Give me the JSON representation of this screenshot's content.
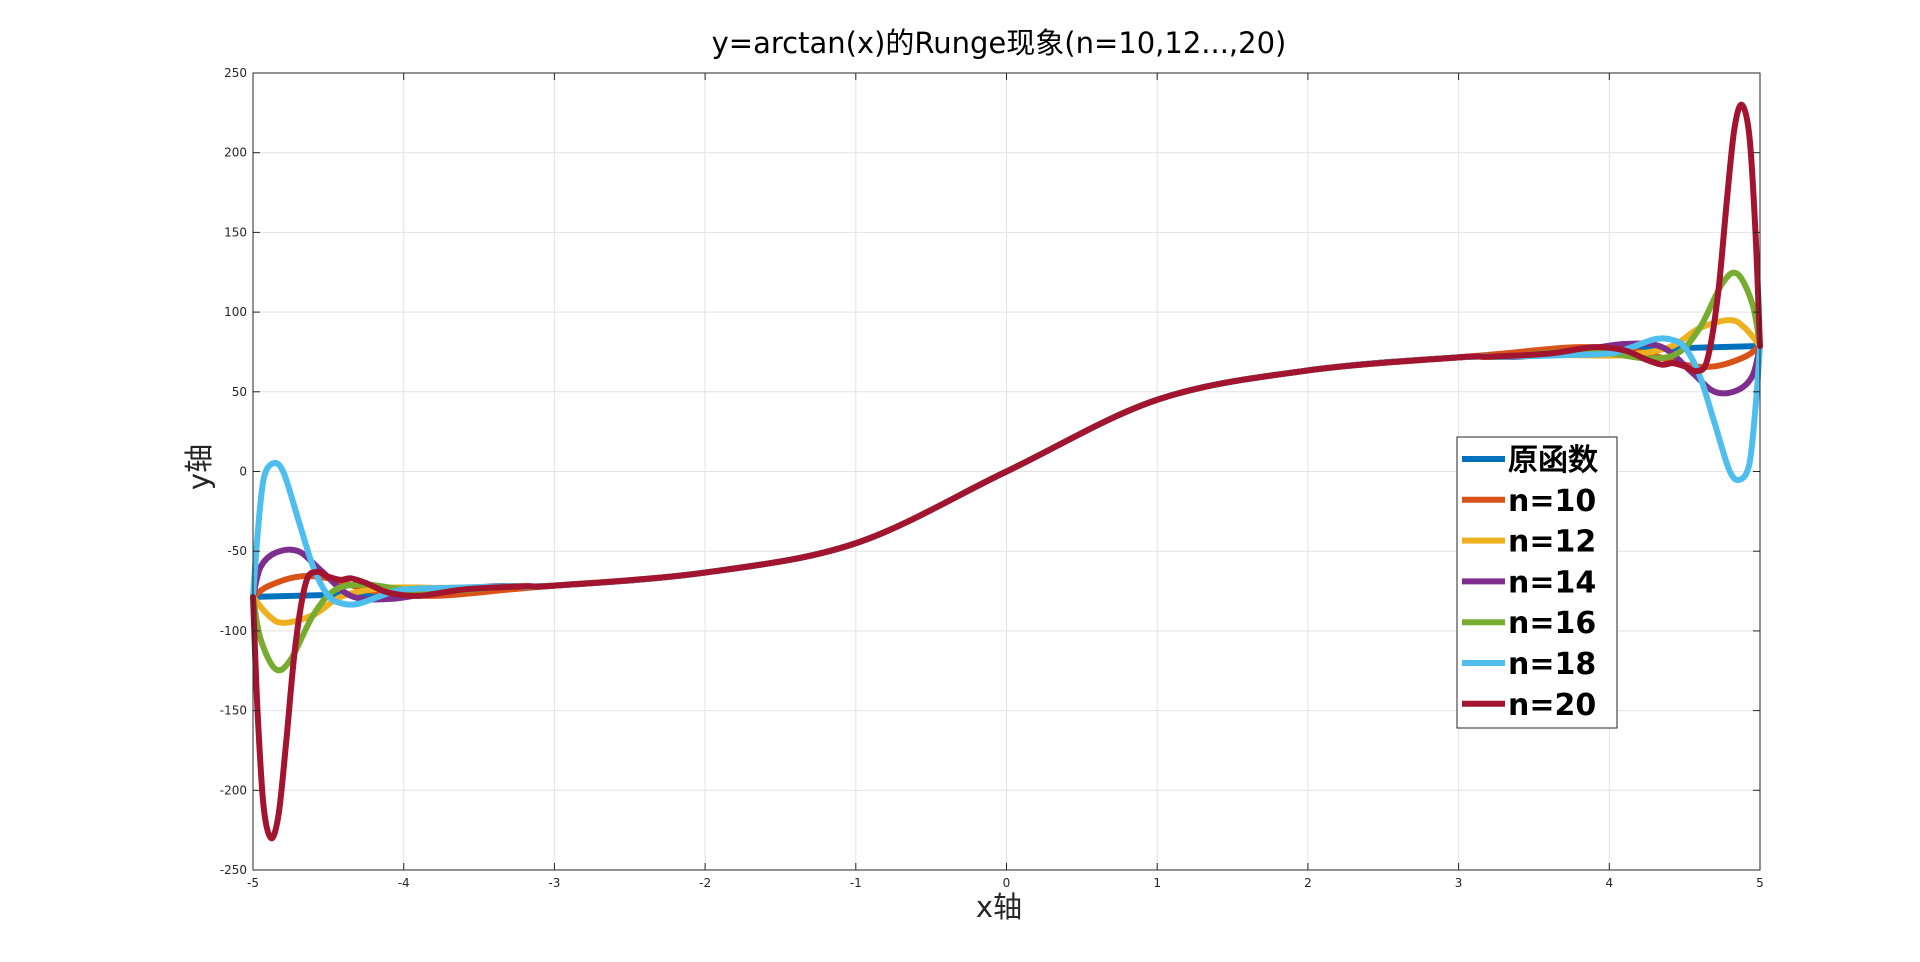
{
  "chart_data": {
    "type": "line",
    "title": "y=arctan(x)的Runge现象(n=10,12...,20)",
    "xlabel": "x轴",
    "ylabel": "y轴",
    "xlim": [
      -5,
      5
    ],
    "ylim": [
      -250,
      250
    ],
    "xticks": [
      "-5",
      "-4",
      "-3",
      "-2",
      "-1",
      "0",
      "1",
      "2",
      "3",
      "4",
      "5"
    ],
    "yticks": [
      "-250",
      "-200",
      "-150",
      "-100",
      "-50",
      "0",
      "50",
      "100",
      "150",
      "200",
      "250"
    ],
    "grid": true,
    "legend_position": "right",
    "series": [
      {
        "name": "原函数",
        "color": "#0072BD",
        "x": [
          -5,
          -4,
          -3,
          -2,
          -1,
          0,
          1,
          2,
          3,
          4,
          5
        ],
        "y": [
          -78.7,
          -76.0,
          -71.6,
          -63.4,
          -45.0,
          0,
          45.0,
          63.4,
          71.6,
          76.0,
          78.7
        ]
      },
      {
        "name": "n=10",
        "color": "#D95319",
        "x": [
          -5,
          -4.9,
          -4.7,
          -4.5,
          -4.2,
          -3.8,
          -3.3,
          -3,
          -2,
          -1,
          0,
          1,
          2,
          3,
          3.3,
          3.8,
          4.2,
          4.5,
          4.7,
          4.9,
          5
        ],
        "y": [
          -78.7,
          -72,
          -66,
          -67,
          -75,
          -78,
          -74,
          -71.6,
          -63.4,
          -45.0,
          0,
          45.0,
          63.4,
          71.6,
          74,
          78,
          75,
          67,
          66,
          72,
          78.7
        ]
      },
      {
        "name": "n=12",
        "color": "#EDB120",
        "x": [
          -5,
          -4.9,
          -4.8,
          -4.6,
          -4.4,
          -4.1,
          -3.7,
          -3.2,
          -3,
          -2,
          -1,
          0,
          1,
          2,
          3,
          3.2,
          3.7,
          4.1,
          4.4,
          4.6,
          4.8,
          4.9,
          5
        ],
        "y": [
          -78.7,
          -90,
          -95,
          -90,
          -78,
          -73,
          -73,
          -72,
          -71.6,
          -63.4,
          -45.0,
          0,
          45.0,
          63.4,
          71.6,
          72,
          73,
          73,
          78,
          90,
          95,
          90,
          78.7
        ]
      },
      {
        "name": "n=14",
        "color": "#7E2F8E",
        "x": [
          -5,
          -4.95,
          -4.85,
          -4.7,
          -4.55,
          -4.35,
          -4.1,
          -3.8,
          -3.4,
          -3,
          -2,
          -1,
          0,
          1,
          2,
          3,
          3.4,
          3.8,
          4.1,
          4.35,
          4.55,
          4.7,
          4.85,
          4.95,
          5
        ],
        "y": [
          -78.7,
          -60,
          -51,
          -50,
          -62,
          -78,
          -80,
          -76,
          -72,
          -71.6,
          -63.4,
          -45.0,
          0,
          45.0,
          63.4,
          71.6,
          72,
          76,
          80,
          78,
          62,
          50,
          51,
          60,
          78.7
        ]
      },
      {
        "name": "n=16",
        "color": "#77AC30",
        "x": [
          -5,
          -4.95,
          -4.85,
          -4.75,
          -4.6,
          -4.45,
          -4.25,
          -4.0,
          -3.7,
          -3.3,
          -3,
          -2,
          -1,
          0,
          1,
          2,
          3,
          3.3,
          3.7,
          4.0,
          4.25,
          4.45,
          4.6,
          4.75,
          4.85,
          4.95,
          5
        ],
        "y": [
          -78.7,
          -105,
          -124,
          -118,
          -90,
          -74,
          -71,
          -74,
          -75,
          -72,
          -71.6,
          -63.4,
          -45.0,
          0,
          45.0,
          63.4,
          71.6,
          72,
          75,
          74,
          71,
          74,
          90,
          118,
          124,
          105,
          78.7
        ]
      },
      {
        "name": "n=18",
        "color": "#4DBEEE",
        "x": [
          -5,
          -4.97,
          -4.93,
          -4.87,
          -4.8,
          -4.7,
          -4.6,
          -4.5,
          -4.4,
          -4.3,
          -4.15,
          -4.0,
          -3.7,
          -3.3,
          -3,
          -2,
          -1,
          0,
          1,
          2,
          3,
          3.3,
          3.7,
          4.0,
          4.15,
          4.3,
          4.4,
          4.5,
          4.6,
          4.7,
          4.8,
          4.87,
          4.93,
          4.97,
          5
        ],
        "y": [
          -78.7,
          -40,
          -5,
          5,
          0,
          -30,
          -60,
          -78,
          -83,
          -83,
          -78,
          -74,
          -73,
          -72,
          -71.6,
          -63.4,
          -45.0,
          0,
          45.0,
          63.4,
          71.6,
          72,
          73,
          74,
          78,
          83,
          83,
          78,
          60,
          30,
          0,
          -5,
          5,
          40,
          78.7
        ]
      },
      {
        "name": "n=20",
        "color": "#A2142F",
        "x": [
          -5,
          -4.97,
          -4.93,
          -4.88,
          -4.83,
          -4.78,
          -4.72,
          -4.65,
          -4.58,
          -4.5,
          -4.42,
          -4.35,
          -4.25,
          -4.1,
          -3.9,
          -3.6,
          -3.2,
          -3,
          -2,
          -1,
          0,
          1,
          2,
          3,
          3.2,
          3.6,
          3.9,
          4.1,
          4.25,
          4.35,
          4.42,
          4.5,
          4.58,
          4.65,
          4.72,
          4.78,
          4.83,
          4.88,
          4.93,
          4.97,
          5
        ],
        "y": [
          -78.7,
          -150,
          -210,
          -230,
          -215,
          -170,
          -110,
          -70,
          -63,
          -66,
          -68,
          -67,
          -70,
          -76,
          -78,
          -74,
          -72,
          -71.6,
          -63.4,
          -45.0,
          0,
          45.0,
          63.4,
          71.6,
          72,
          74,
          78,
          76,
          70,
          67,
          68,
          66,
          63,
          70,
          110,
          170,
          215,
          230,
          210,
          150,
          78.7
        ]
      }
    ]
  }
}
